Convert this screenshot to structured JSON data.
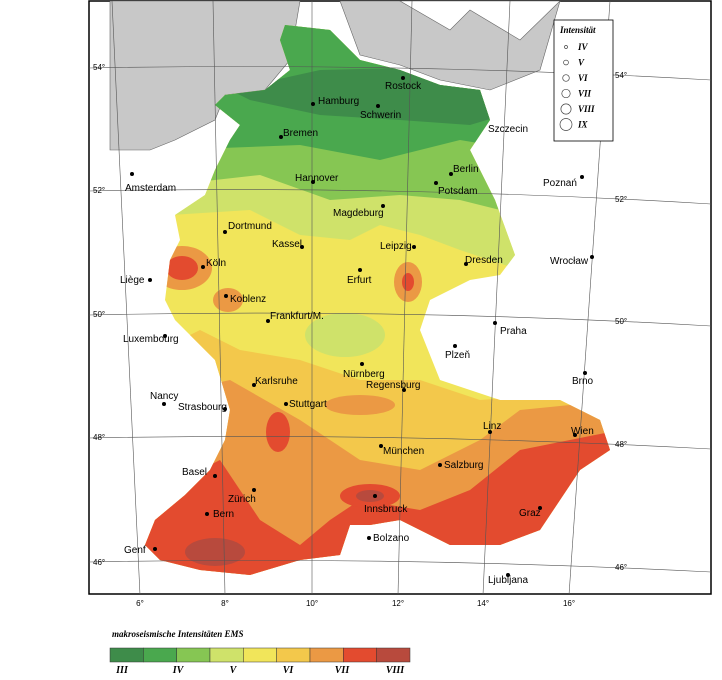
{
  "legend": {
    "title": "Intensität",
    "items": [
      "IV",
      "V",
      "VI",
      "VII",
      "VIII",
      "IX"
    ]
  },
  "cities": [
    "Rostock",
    "Hamburg",
    "Schwerin",
    "Szczecin",
    "Bremen",
    "Hannover",
    "Berlin",
    "Potsdam",
    "Amsterdam",
    "Poznań",
    "Magdeburg",
    "Dortmund",
    "Kassel",
    "Leipzig",
    "Dresden",
    "Wrocław",
    "Köln",
    "Erfurt",
    "Liège",
    "Koblenz",
    "Frankfurt/M.",
    "Praha",
    "Luxembourg",
    "Plzeň",
    "Nürnberg",
    "Brno",
    "Karlsruhe",
    "Regensburg",
    "Nancy",
    "Strasbourg",
    "Stuttgart",
    "Linz",
    "Wien",
    "München",
    "Salzburg",
    "Basel",
    "Zürich",
    "Bern",
    "Innsbruck",
    "Graz",
    "Bolzano",
    "Genf",
    "Ljubljana"
  ],
  "latitude_labels": {
    "left": [
      "54°",
      "52°",
      "50°",
      "48°",
      "46°"
    ],
    "right": [
      "54°",
      "52°",
      "50°",
      "48°",
      "46°"
    ]
  },
  "longitude_labels": [
    "6°",
    "8°",
    "10°",
    "12°",
    "14°",
    "16°"
  ],
  "colorbar": {
    "title": "makroseismische Intensitäten  EMS",
    "labels": [
      "III",
      "IV",
      "V",
      "VI",
      "VII",
      "VIII"
    ],
    "colors": [
      "#3e8c4a",
      "#4aa84e",
      "#86c653",
      "#cfe26a",
      "#f1e55a",
      "#f3c84b",
      "#eb9944",
      "#e34b2f",
      "#b84a3d"
    ]
  }
}
